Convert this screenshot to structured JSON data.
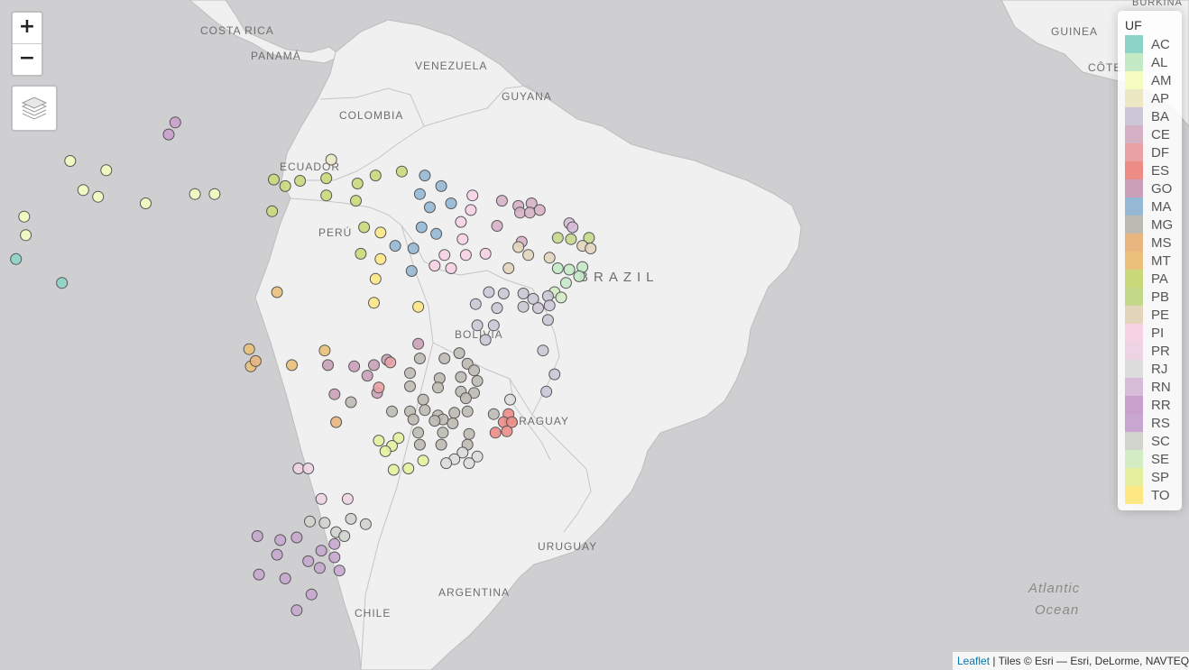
{
  "zoom": {
    "in_label": "+",
    "out_label": "−"
  },
  "legend": {
    "title": "UF",
    "items": [
      {
        "label": "AC",
        "color": "#8dd3c7"
      },
      {
        "label": "AL",
        "color": "#c4e9c5"
      },
      {
        "label": "AM",
        "color": "#f4fcc0"
      },
      {
        "label": "AP",
        "color": "#ebe8c3"
      },
      {
        "label": "BA",
        "color": "#ccc6d6"
      },
      {
        "label": "CE",
        "color": "#d5b1c5"
      },
      {
        "label": "DF",
        "color": "#e9a1a3"
      },
      {
        "label": "ES",
        "color": "#ed8c87"
      },
      {
        "label": "GO",
        "color": "#c9a0b8"
      },
      {
        "label": "MA",
        "color": "#95b8d4"
      },
      {
        "label": "MG",
        "color": "#bdbab3"
      },
      {
        "label": "MS",
        "color": "#e8b67e"
      },
      {
        "label": "MT",
        "color": "#eac07a"
      },
      {
        "label": "PA",
        "color": "#c9d97a"
      },
      {
        "label": "PB",
        "color": "#c4d889"
      },
      {
        "label": "PE",
        "color": "#e3d5bc"
      },
      {
        "label": "PI",
        "color": "#f7d1e4"
      },
      {
        "label": "PR",
        "color": "#edd3e3"
      },
      {
        "label": "RJ",
        "color": "#dcdcdc"
      },
      {
        "label": "RN",
        "color": "#d6bcd6"
      },
      {
        "label": "RR",
        "color": "#c9a0cc"
      },
      {
        "label": "RS",
        "color": "#c7a7cf"
      },
      {
        "label": "SC",
        "color": "#d0d4cd"
      },
      {
        "label": "SE",
        "color": "#d4ecc4"
      },
      {
        "label": "SP",
        "color": "#e6ef9e"
      },
      {
        "label": "TO",
        "color": "#fde884"
      }
    ]
  },
  "attribution": {
    "link": "Leaflet",
    "text": " | Tiles © Esri — Esri, DeLorme, NAVTEQ"
  },
  "labels": {
    "costa_rica": "COSTA RICA",
    "panama": "PANAMÁ",
    "venezuela": "VENEZUELA",
    "guyana": "GUYANA",
    "colombia": "COLOMBIA",
    "ecuador": "ECUADOR",
    "peru": "PERÚ",
    "brazil": "BRAZIL",
    "bolivia": "BOLIVIA",
    "paraguay": "PARAGUAY",
    "uruguay": "URUGUAY",
    "argentina": "ARGENTINA",
    "chile": "CHILE",
    "guinea": "GUINEA",
    "cote": "CÔTE",
    "burkina": "BURKINA",
    "atlantic": "Atlantic",
    "ocean": "Ocean"
  },
  "markers": [
    {
      "uf": "RR",
      "lon": -60.7,
      "lat": 2.8
    },
    {
      "uf": "RR",
      "lon": -61.1,
      "lat": 1.9
    },
    {
      "uf": "AM",
      "lon": -67.1,
      "lat": -0.1
    },
    {
      "uf": "AM",
      "lon": -64.9,
      "lat": -0.8
    },
    {
      "uf": "AM",
      "lon": -66.3,
      "lat": -2.3
    },
    {
      "uf": "AM",
      "lon": -65.4,
      "lat": -2.8
    },
    {
      "uf": "AM",
      "lon": -62.5,
      "lat": -3.3
    },
    {
      "uf": "AM",
      "lon": -59.5,
      "lat": -2.6
    },
    {
      "uf": "AM",
      "lon": -58.3,
      "lat": -2.6
    },
    {
      "uf": "AM",
      "lon": -69.9,
      "lat": -4.3
    },
    {
      "uf": "AM",
      "lon": -69.8,
      "lat": -5.7
    },
    {
      "uf": "AC",
      "lon": -70.4,
      "lat": -7.5
    },
    {
      "uf": "AC",
      "lon": -67.6,
      "lat": -9.3
    },
    {
      "uf": "AP",
      "lon": -51.2,
      "lat": 0.0
    },
    {
      "uf": "PA",
      "lon": -54.7,
      "lat": -1.5
    },
    {
      "uf": "PA",
      "lon": -54.0,
      "lat": -2.0
    },
    {
      "uf": "PA",
      "lon": -53.1,
      "lat": -1.6
    },
    {
      "uf": "PA",
      "lon": -51.5,
      "lat": -1.4
    },
    {
      "uf": "PA",
      "lon": -49.6,
      "lat": -1.8
    },
    {
      "uf": "PA",
      "lon": -48.5,
      "lat": -1.2
    },
    {
      "uf": "PA",
      "lon": -46.9,
      "lat": -0.9
    },
    {
      "uf": "PA",
      "lon": -51.5,
      "lat": -2.7
    },
    {
      "uf": "PA",
      "lon": -49.7,
      "lat": -3.1
    },
    {
      "uf": "PA",
      "lon": -54.8,
      "lat": -3.9
    },
    {
      "uf": "PA",
      "lon": -49.2,
      "lat": -5.1
    },
    {
      "uf": "PA",
      "lon": -49.4,
      "lat": -7.1
    },
    {
      "uf": "MA",
      "lon": -45.5,
      "lat": -1.2
    },
    {
      "uf": "MA",
      "lon": -44.5,
      "lat": -2.0
    },
    {
      "uf": "MA",
      "lon": -45.8,
      "lat": -2.6
    },
    {
      "uf": "MA",
      "lon": -45.2,
      "lat": -3.6
    },
    {
      "uf": "MA",
      "lon": -43.9,
      "lat": -3.3
    },
    {
      "uf": "MA",
      "lon": -45.7,
      "lat": -5.1
    },
    {
      "uf": "MA",
      "lon": -44.8,
      "lat": -5.6
    },
    {
      "uf": "MA",
      "lon": -47.3,
      "lat": -6.5
    },
    {
      "uf": "MA",
      "lon": -46.2,
      "lat": -6.7
    },
    {
      "uf": "MA",
      "lon": -46.3,
      "lat": -8.4
    },
    {
      "uf": "PI",
      "lon": -42.6,
      "lat": -2.7
    },
    {
      "uf": "PI",
      "lon": -42.7,
      "lat": -3.8
    },
    {
      "uf": "PI",
      "lon": -43.3,
      "lat": -4.7
    },
    {
      "uf": "PI",
      "lon": -43.2,
      "lat": -6.0
    },
    {
      "uf": "PI",
      "lon": -44.3,
      "lat": -7.2
    },
    {
      "uf": "PI",
      "lon": -43.0,
      "lat": -7.2
    },
    {
      "uf": "PI",
      "lon": -41.8,
      "lat": -7.1
    },
    {
      "uf": "PI",
      "lon": -44.9,
      "lat": -8.0
    },
    {
      "uf": "PI",
      "lon": -43.9,
      "lat": -8.2
    },
    {
      "uf": "CE",
      "lon": -40.8,
      "lat": -3.1
    },
    {
      "uf": "CE",
      "lon": -39.8,
      "lat": -3.5
    },
    {
      "uf": "CE",
      "lon": -39.0,
      "lat": -3.3
    },
    {
      "uf": "CE",
      "lon": -39.7,
      "lat": -4.0
    },
    {
      "uf": "CE",
      "lon": -39.1,
      "lat": -4.0
    },
    {
      "uf": "CE",
      "lon": -38.5,
      "lat": -3.8
    },
    {
      "uf": "CE",
      "lon": -41.1,
      "lat": -5.0
    },
    {
      "uf": "CE",
      "lon": -39.6,
      "lat": -6.2
    },
    {
      "uf": "RN",
      "lon": -36.7,
      "lat": -4.8
    },
    {
      "uf": "RN",
      "lon": -36.5,
      "lat": -5.1
    },
    {
      "uf": "PB",
      "lon": -37.4,
      "lat": -5.9
    },
    {
      "uf": "PB",
      "lon": -36.6,
      "lat": -6.0
    },
    {
      "uf": "PB",
      "lon": -35.5,
      "lat": -5.9
    },
    {
      "uf": "PE",
      "lon": -35.9,
      "lat": -6.5
    },
    {
      "uf": "PE",
      "lon": -35.4,
      "lat": -6.7
    },
    {
      "uf": "PE",
      "lon": -37.9,
      "lat": -7.4
    },
    {
      "uf": "PE",
      "lon": -39.8,
      "lat": -6.6
    },
    {
      "uf": "PE",
      "lon": -39.2,
      "lat": -7.2
    },
    {
      "uf": "PE",
      "lon": -40.4,
      "lat": -8.2
    },
    {
      "uf": "AL",
      "lon": -37.4,
      "lat": -8.2
    },
    {
      "uf": "AL",
      "lon": -36.7,
      "lat": -8.3
    },
    {
      "uf": "AL",
      "lon": -35.9,
      "lat": -8.1
    },
    {
      "uf": "AL",
      "lon": -36.1,
      "lat": -8.8
    },
    {
      "uf": "AL",
      "lon": -36.9,
      "lat": -9.3
    },
    {
      "uf": "SE",
      "lon": -37.6,
      "lat": -10.0
    },
    {
      "uf": "SE",
      "lon": -37.2,
      "lat": -10.4
    },
    {
      "uf": "BA",
      "lon": -38.0,
      "lat": -10.3
    },
    {
      "uf": "BA",
      "lon": -37.9,
      "lat": -11.0
    },
    {
      "uf": "BA",
      "lon": -38.0,
      "lat": -12.1
    },
    {
      "uf": "BA",
      "lon": -41.6,
      "lat": -10.0
    },
    {
      "uf": "BA",
      "lon": -40.7,
      "lat": -10.1
    },
    {
      "uf": "BA",
      "lon": -39.5,
      "lat": -10.1
    },
    {
      "uf": "BA",
      "lon": -38.9,
      "lat": -10.5
    },
    {
      "uf": "BA",
      "lon": -42.4,
      "lat": -10.9
    },
    {
      "uf": "BA",
      "lon": -41.1,
      "lat": -11.2
    },
    {
      "uf": "BA",
      "lon": -39.5,
      "lat": -11.1
    },
    {
      "uf": "BA",
      "lon": -38.6,
      "lat": -11.2
    },
    {
      "uf": "BA",
      "lon": -42.3,
      "lat": -12.5
    },
    {
      "uf": "BA",
      "lon": -41.3,
      "lat": -12.5
    },
    {
      "uf": "BA",
      "lon": -41.8,
      "lat": -13.6
    },
    {
      "uf": "BA",
      "lon": -38.3,
      "lat": -14.4
    },
    {
      "uf": "BA",
      "lon": -37.6,
      "lat": -16.2
    },
    {
      "uf": "BA",
      "lon": -38.1,
      "lat": -17.5
    },
    {
      "uf": "TO",
      "lon": -48.2,
      "lat": -5.5
    },
    {
      "uf": "TO",
      "lon": -48.2,
      "lat": -7.5
    },
    {
      "uf": "TO",
      "lon": -48.5,
      "lat": -9.0
    },
    {
      "uf": "TO",
      "lon": -48.6,
      "lat": -10.8
    },
    {
      "uf": "TO",
      "lon": -45.9,
      "lat": -11.1
    },
    {
      "uf": "MT",
      "lon": -54.5,
      "lat": -10.0
    },
    {
      "uf": "MT",
      "lon": -56.2,
      "lat": -14.3
    },
    {
      "uf": "MT",
      "lon": -56.1,
      "lat": -15.6
    },
    {
      "uf": "MT",
      "lon": -53.6,
      "lat": -15.5
    },
    {
      "uf": "MT",
      "lon": -51.6,
      "lat": -14.4
    },
    {
      "uf": "MS",
      "lon": -55.8,
      "lat": -15.2
    },
    {
      "uf": "MS",
      "lon": -50.9,
      "lat": -19.8
    },
    {
      "uf": "GO",
      "lon": -51.4,
      "lat": -15.5
    },
    {
      "uf": "GO",
      "lon": -49.8,
      "lat": -15.6
    },
    {
      "uf": "GO",
      "lon": -48.6,
      "lat": -15.5
    },
    {
      "uf": "GO",
      "lon": -47.8,
      "lat": -15.1
    },
    {
      "uf": "GO",
      "lon": -45.9,
      "lat": -13.9
    },
    {
      "uf": "GO",
      "lon": -49.0,
      "lat": -16.3
    },
    {
      "uf": "GO",
      "lon": -51.0,
      "lat": -17.7
    },
    {
      "uf": "GO",
      "lon": -48.4,
      "lat": -17.6
    },
    {
      "uf": "DF",
      "lon": -47.6,
      "lat": -15.3
    },
    {
      "uf": "DF",
      "lon": -48.3,
      "lat": -17.2
    },
    {
      "uf": "MG",
      "lon": -45.8,
      "lat": -15.0
    },
    {
      "uf": "MG",
      "lon": -44.3,
      "lat": -15.0
    },
    {
      "uf": "MG",
      "lon": -43.4,
      "lat": -14.6
    },
    {
      "uf": "MG",
      "lon": -42.9,
      "lat": -15.4
    },
    {
      "uf": "MG",
      "lon": -42.5,
      "lat": -15.9
    },
    {
      "uf": "MG",
      "lon": -46.4,
      "lat": -16.1
    },
    {
      "uf": "MG",
      "lon": -44.6,
      "lat": -16.5
    },
    {
      "uf": "MG",
      "lon": -43.3,
      "lat": -16.4
    },
    {
      "uf": "MG",
      "lon": -42.3,
      "lat": -16.7
    },
    {
      "uf": "MG",
      "lon": -46.4,
      "lat": -17.1
    },
    {
      "uf": "MG",
      "lon": -44.7,
      "lat": -17.2
    },
    {
      "uf": "MG",
      "lon": -43.3,
      "lat": -17.5
    },
    {
      "uf": "MG",
      "lon": -42.5,
      "lat": -17.6
    },
    {
      "uf": "MG",
      "lon": -50.0,
      "lat": -18.3
    },
    {
      "uf": "MG",
      "lon": -45.6,
      "lat": -18.1
    },
    {
      "uf": "MG",
      "lon": -43.0,
      "lat": -18.0
    },
    {
      "uf": "MG",
      "lon": -47.5,
      "lat": -19.0
    },
    {
      "uf": "MG",
      "lon": -46.4,
      "lat": -19.0
    },
    {
      "uf": "MG",
      "lon": -45.5,
      "lat": -18.9
    },
    {
      "uf": "MG",
      "lon": -44.7,
      "lat": -19.3
    },
    {
      "uf": "MG",
      "lon": -43.7,
      "lat": -19.1
    },
    {
      "uf": "MG",
      "lon": -42.9,
      "lat": -19.0
    },
    {
      "uf": "MG",
      "lon": -41.3,
      "lat": -19.2
    },
    {
      "uf": "MG",
      "lon": -46.2,
      "lat": -19.6
    },
    {
      "uf": "MG",
      "lon": -44.4,
      "lat": -19.6
    },
    {
      "uf": "MG",
      "lon": -44.9,
      "lat": -19.7
    },
    {
      "uf": "MG",
      "lon": -43.8,
      "lat": -19.9
    },
    {
      "uf": "MG",
      "lon": -45.9,
      "lat": -20.6
    },
    {
      "uf": "MG",
      "lon": -44.4,
      "lat": -20.6
    },
    {
      "uf": "MG",
      "lon": -42.8,
      "lat": -20.7
    },
    {
      "uf": "MG",
      "lon": -45.8,
      "lat": -21.5
    },
    {
      "uf": "MG",
      "lon": -44.5,
      "lat": -21.5
    },
    {
      "uf": "MG",
      "lon": -42.9,
      "lat": -21.5
    },
    {
      "uf": "ES",
      "lon": -40.4,
      "lat": -19.2
    },
    {
      "uf": "ES",
      "lon": -40.7,
      "lat": -19.8
    },
    {
      "uf": "ES",
      "lon": -40.2,
      "lat": -19.8
    },
    {
      "uf": "ES",
      "lon": -41.2,
      "lat": -20.6
    },
    {
      "uf": "ES",
      "lon": -40.5,
      "lat": -20.5
    },
    {
      "uf": "RJ",
      "lon": -40.3,
      "lat": -18.1
    },
    {
      "uf": "RJ",
      "lon": -43.2,
      "lat": -22.1
    },
    {
      "uf": "RJ",
      "lon": -42.3,
      "lat": -22.4
    },
    {
      "uf": "RJ",
      "lon": -43.7,
      "lat": -22.6
    },
    {
      "uf": "RJ",
      "lon": -42.8,
      "lat": -22.9
    },
    {
      "uf": "RJ",
      "lon": -44.2,
      "lat": -22.9
    },
    {
      "uf": "SP",
      "lon": -47.1,
      "lat": -21.0
    },
    {
      "uf": "SP",
      "lon": -48.3,
      "lat": -21.2
    },
    {
      "uf": "SP",
      "lon": -47.5,
      "lat": -21.6
    },
    {
      "uf": "SP",
      "lon": -47.9,
      "lat": -22.0
    },
    {
      "uf": "SP",
      "lon": -45.6,
      "lat": -22.7
    },
    {
      "uf": "SP",
      "lon": -46.5,
      "lat": -23.3
    },
    {
      "uf": "SP",
      "lon": -47.4,
      "lat": -23.4
    },
    {
      "uf": "PR",
      "lon": -53.2,
      "lat": -23.3
    },
    {
      "uf": "PR",
      "lon": -52.6,
      "lat": -23.3
    },
    {
      "uf": "PR",
      "lon": -51.8,
      "lat": -25.6
    },
    {
      "uf": "PR",
      "lon": -50.2,
      "lat": -25.6
    },
    {
      "uf": "SC",
      "lon": -52.5,
      "lat": -27.3
    },
    {
      "uf": "SC",
      "lon": -51.6,
      "lat": -27.4
    },
    {
      "uf": "SC",
      "lon": -50.0,
      "lat": -27.1
    },
    {
      "uf": "SC",
      "lon": -49.1,
      "lat": -27.5
    },
    {
      "uf": "SC",
      "lon": -50.9,
      "lat": -28.1
    },
    {
      "uf": "SC",
      "lon": -50.4,
      "lat": -28.4
    },
    {
      "uf": "RS",
      "lon": -55.7,
      "lat": -28.4
    },
    {
      "uf": "RS",
      "lon": -54.3,
      "lat": -28.7
    },
    {
      "uf": "RS",
      "lon": -53.3,
      "lat": -28.5
    },
    {
      "uf": "RS",
      "lon": -54.5,
      "lat": -29.8
    },
    {
      "uf": "RS",
      "lon": -51.8,
      "lat": -29.5
    },
    {
      "uf": "RS",
      "lon": -51.0,
      "lat": -29.0
    },
    {
      "uf": "RS",
      "lon": -51.0,
      "lat": -30.0
    },
    {
      "uf": "RS",
      "lon": -52.6,
      "lat": -30.3
    },
    {
      "uf": "RS",
      "lon": -51.9,
      "lat": -30.8
    },
    {
      "uf": "RS",
      "lon": -55.6,
      "lat": -31.3
    },
    {
      "uf": "RS",
      "lon": -54.0,
      "lat": -31.6
    },
    {
      "uf": "RS",
      "lon": -50.7,
      "lat": -31.0
    },
    {
      "uf": "RS",
      "lon": -52.4,
      "lat": -32.8
    },
    {
      "uf": "RS",
      "lon": -53.3,
      "lat": -34.0
    }
  ]
}
